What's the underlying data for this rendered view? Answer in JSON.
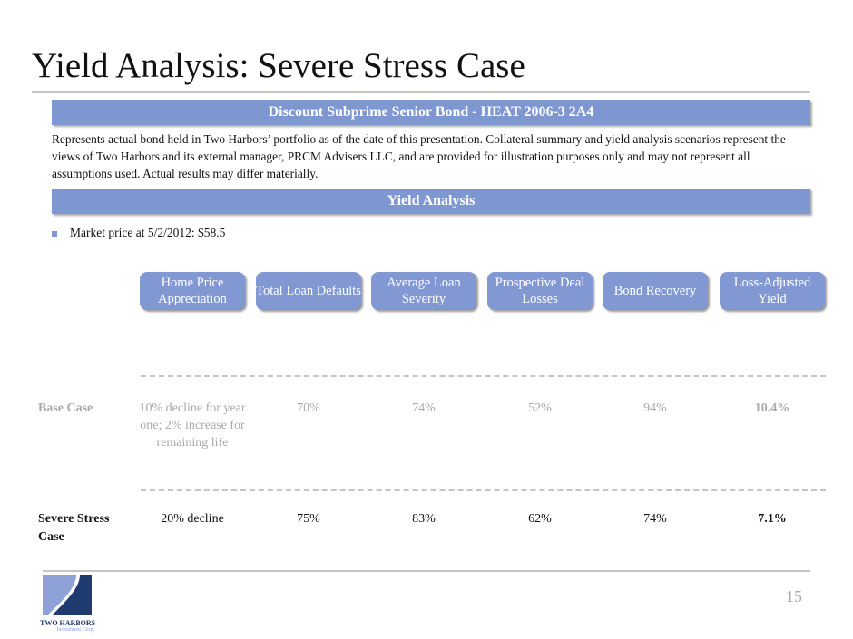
{
  "title": "Yield Analysis:  Severe Stress Case",
  "bond_header": "Discount Subprime Senior Bond - HEAT 2006-3 2A4",
  "description": "Represents actual bond held in Two Harbors’ portfolio as of the date of this presentation.  Collateral summary and yield analysis scenarios represent the views of Two Harbors and its external manager, PRCM Advisers LLC, and are provided for illustration purposes only and may not represent all assumptions used. Actual results may differ materially.",
  "yield_header": "Yield Analysis",
  "bullet": "Market price at 5/2/2012:  $58.5",
  "columns": [
    "Home Price Appreciation",
    "Total Loan Defaults",
    "Average Loan Severity",
    "Prospective Deal Losses",
    "Bond Recovery",
    "Loss-Adjusted Yield"
  ],
  "rows": [
    {
      "label": "Base Case",
      "values": [
        "10% decline for year one; 2% increase for remaining life",
        "70%",
        "74%",
        "52%",
        "94%",
        "10.4%"
      ]
    },
    {
      "label": "Severe Stress Case",
      "values": [
        "20% decline",
        "75%",
        "83%",
        "62%",
        "74%",
        "7.1%"
      ]
    }
  ],
  "logo": {
    "name": "TWO HARBORS",
    "sub": "Investment Corp."
  },
  "page_number": "15",
  "colors": {
    "accent": "#7f97d1",
    "logo_dark": "#1f3a6e",
    "logo_light": "#8ea2d8"
  }
}
